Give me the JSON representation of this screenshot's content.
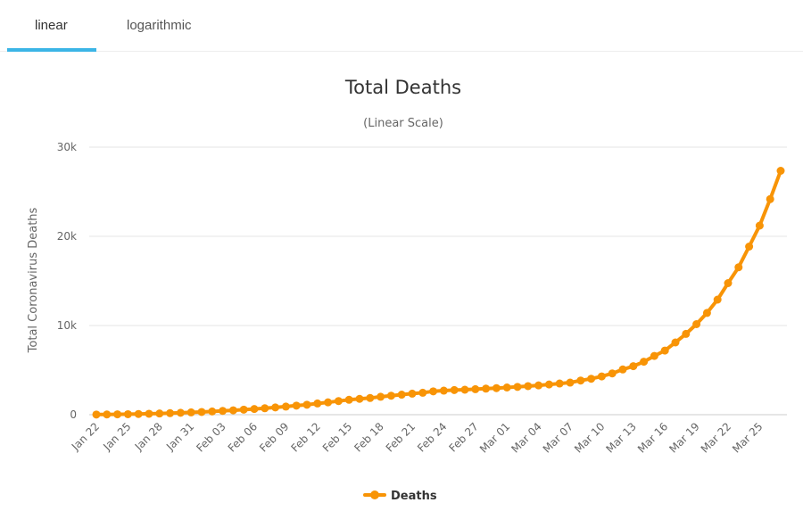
{
  "tabs": [
    {
      "label": "linear",
      "active": true
    },
    {
      "label": "logarithmic",
      "active": false
    }
  ],
  "colors": {
    "series": "#f89406",
    "tab_accent": "#3bb5e6",
    "grid": "#e6e6e6"
  },
  "chart_data": {
    "type": "line",
    "title": "Total Deaths",
    "subtitle": "(Linear Scale)",
    "ylabel": "Total Coronavirus Deaths",
    "xlabel": "",
    "ylim": [
      0,
      30000
    ],
    "yticks": [
      0,
      10000,
      20000,
      30000
    ],
    "ytick_labels": [
      "0",
      "10k",
      "20k",
      "30k"
    ],
    "grid": true,
    "legend_position": "bottom-center",
    "x_tick_labels": [
      "Jan 22",
      "Jan 25",
      "Jan 28",
      "Jan 31",
      "Feb 03",
      "Feb 06",
      "Feb 09",
      "Feb 12",
      "Feb 15",
      "Feb 18",
      "Feb 21",
      "Feb 24",
      "Feb 27",
      "Mar 01",
      "Mar 04",
      "Mar 07",
      "Mar 10",
      "Mar 13",
      "Mar 16",
      "Mar 19",
      "Mar 22",
      "Mar 25"
    ],
    "x": [
      "Jan 22",
      "Jan 23",
      "Jan 24",
      "Jan 25",
      "Jan 26",
      "Jan 27",
      "Jan 28",
      "Jan 29",
      "Jan 30",
      "Jan 31",
      "Feb 01",
      "Feb 02",
      "Feb 03",
      "Feb 04",
      "Feb 05",
      "Feb 06",
      "Feb 07",
      "Feb 08",
      "Feb 09",
      "Feb 10",
      "Feb 11",
      "Feb 12",
      "Feb 13",
      "Feb 14",
      "Feb 15",
      "Feb 16",
      "Feb 17",
      "Feb 18",
      "Feb 19",
      "Feb 20",
      "Feb 21",
      "Feb 22",
      "Feb 23",
      "Feb 24",
      "Feb 25",
      "Feb 26",
      "Feb 27",
      "Feb 28",
      "Feb 29",
      "Mar 01",
      "Mar 02",
      "Mar 03",
      "Mar 04",
      "Mar 05",
      "Mar 06",
      "Mar 07",
      "Mar 08",
      "Mar 09",
      "Mar 10",
      "Mar 11",
      "Mar 12",
      "Mar 13",
      "Mar 14",
      "Mar 15",
      "Mar 16",
      "Mar 17",
      "Mar 18",
      "Mar 19",
      "Mar 20",
      "Mar 21",
      "Mar 22",
      "Mar 23",
      "Mar 24",
      "Mar 25",
      "Mar 26",
      "Mar 27"
    ],
    "series": [
      {
        "name": "Deaths",
        "values": [
          17,
          25,
          41,
          56,
          80,
          106,
          132,
          170,
          213,
          259,
          304,
          362,
          426,
          492,
          565,
          638,
          724,
          813,
          910,
          1018,
          1115,
          1261,
          1383,
          1526,
          1669,
          1775,
          1873,
          2009,
          2126,
          2247,
          2360,
          2460,
          2618,
          2699,
          2763,
          2800,
          2858,
          2923,
          2977,
          3050,
          3117,
          3202,
          3285,
          3387,
          3494,
          3599,
          3827,
          4030,
          4290,
          4630,
          5070,
          5440,
          5940,
          6590,
          7190,
          8100,
          9060,
          10150,
          11410,
          12900,
          14750,
          16530,
          18850,
          21200,
          24170,
          27350
        ]
      }
    ]
  }
}
